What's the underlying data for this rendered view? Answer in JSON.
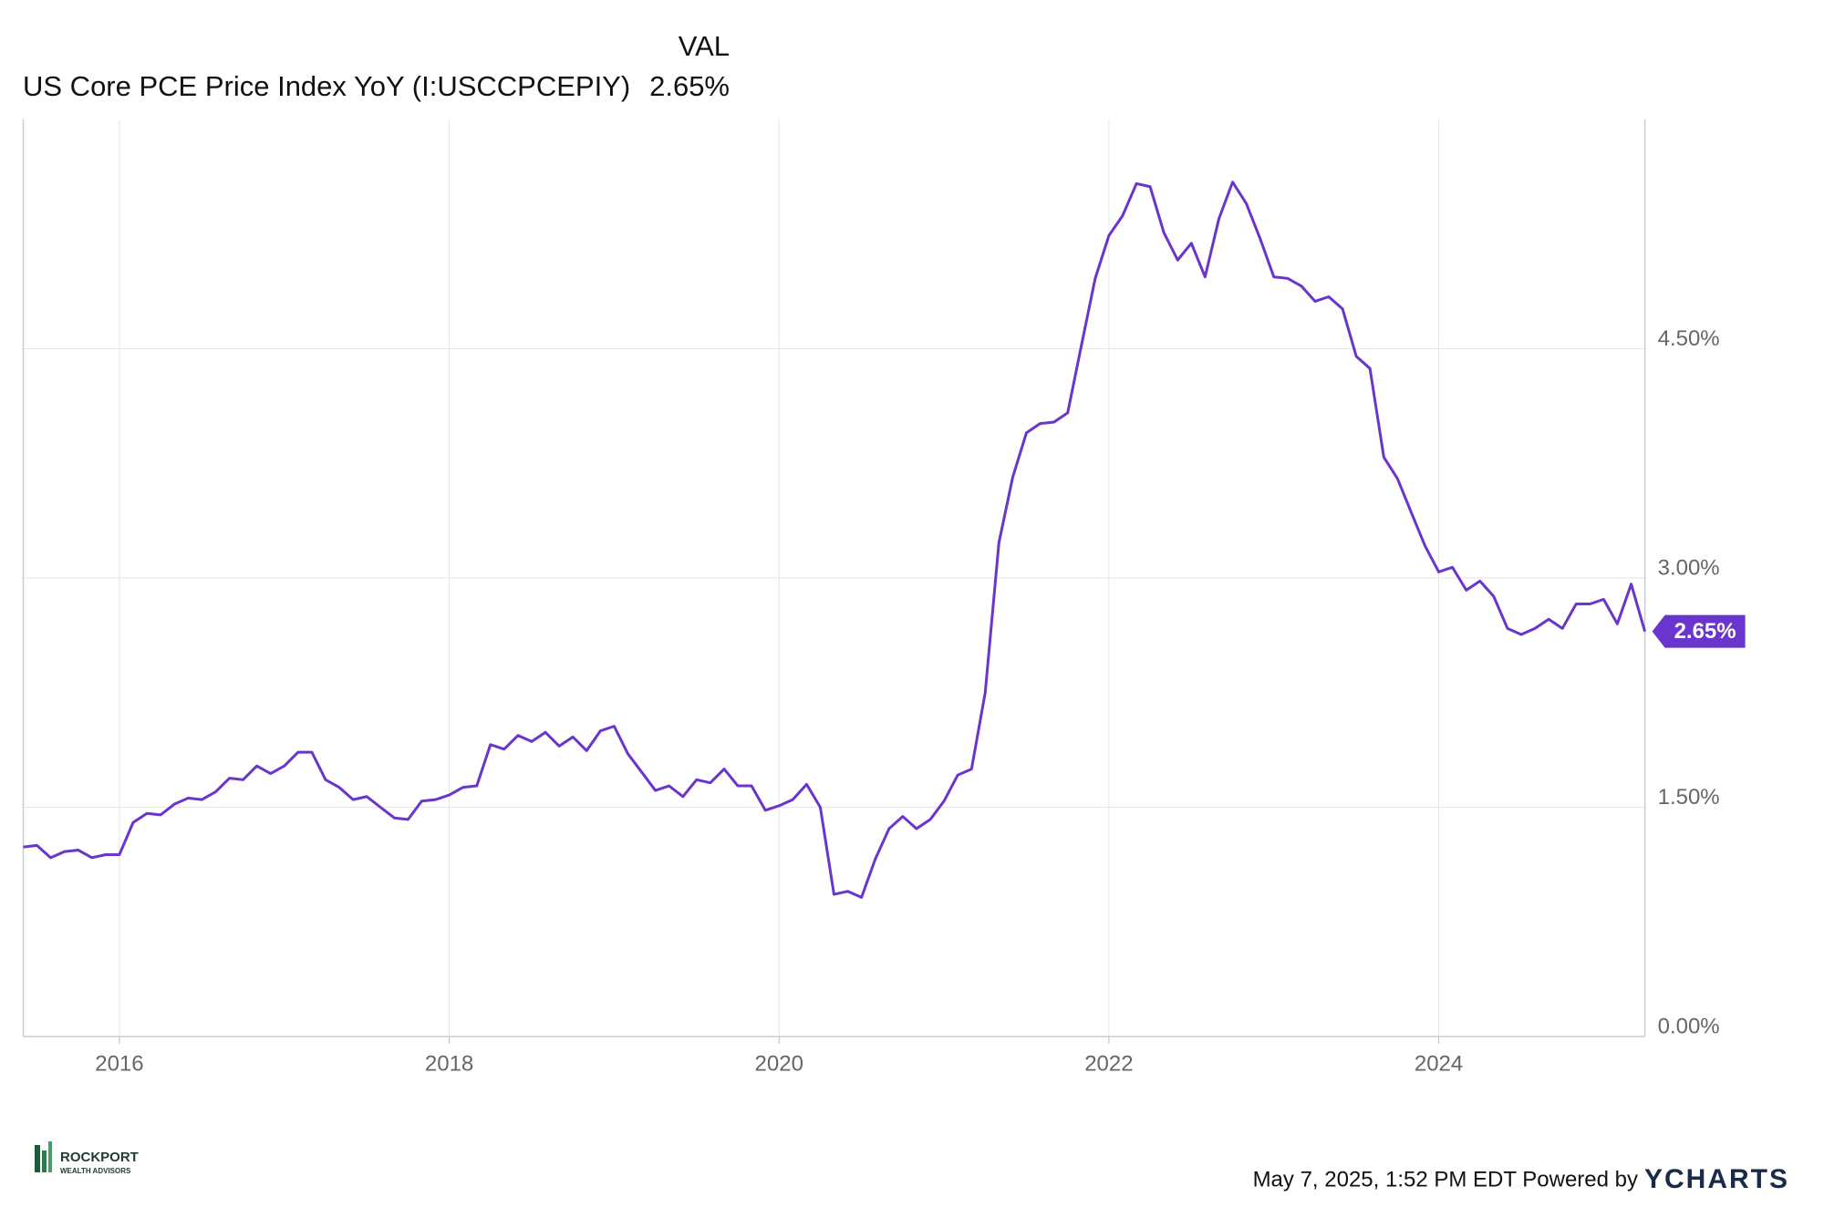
{
  "chart_data": {
    "type": "line",
    "header": "VAL",
    "series": [
      {
        "name": "US Core PCE Price Index YoY (I:USCCPCEPIY)",
        "color": "#6a35cc",
        "last_value_label": "2.65%",
        "values": [
          1.24,
          1.25,
          1.17,
          1.21,
          1.22,
          1.17,
          1.19,
          1.19,
          1.4,
          1.46,
          1.45,
          1.52,
          1.56,
          1.55,
          1.6,
          1.69,
          1.68,
          1.77,
          1.72,
          1.77,
          1.86,
          1.86,
          1.68,
          1.63,
          1.55,
          1.57,
          1.5,
          1.43,
          1.42,
          1.54,
          1.55,
          1.58,
          1.63,
          1.64,
          1.91,
          1.88,
          1.97,
          1.93,
          1.99,
          1.9,
          1.96,
          1.87,
          2.0,
          2.03,
          1.85,
          1.73,
          1.61,
          1.64,
          1.57,
          1.68,
          1.66,
          1.75,
          1.64,
          1.64,
          1.48,
          1.51,
          1.55,
          1.65,
          1.5,
          0.93,
          0.95,
          0.91,
          1.16,
          1.36,
          1.44,
          1.36,
          1.42,
          1.54,
          1.71,
          1.75,
          2.25,
          3.23,
          3.66,
          3.95,
          4.01,
          4.02,
          4.08,
          4.52,
          4.96,
          5.24,
          5.37,
          5.58,
          5.56,
          5.26,
          5.08,
          5.19,
          4.97,
          5.35,
          5.59,
          5.45,
          5.22,
          4.97,
          4.96,
          4.91,
          4.81,
          4.84,
          4.76,
          4.45,
          4.37,
          3.79,
          3.65,
          3.43,
          3.21,
          3.04,
          3.07,
          2.92,
          2.98,
          2.88,
          2.67,
          2.63,
          2.67,
          2.73,
          2.67,
          2.83,
          2.83,
          2.86,
          2.7,
          2.96,
          2.65
        ]
      }
    ],
    "x": [
      2015.417,
      2015.5,
      2015.583,
      2015.667,
      2015.75,
      2015.833,
      2015.917,
      2016,
      2016.083,
      2016.167,
      2016.25,
      2016.333,
      2016.417,
      2016.5,
      2016.583,
      2016.667,
      2016.75,
      2016.833,
      2016.917,
      2017,
      2017.083,
      2017.167,
      2017.25,
      2017.333,
      2017.417,
      2017.5,
      2017.583,
      2017.667,
      2017.75,
      2017.833,
      2017.917,
      2018,
      2018.083,
      2018.167,
      2018.25,
      2018.333,
      2018.417,
      2018.5,
      2018.583,
      2018.667,
      2018.75,
      2018.833,
      2018.917,
      2019,
      2019.083,
      2019.167,
      2019.25,
      2019.333,
      2019.417,
      2019.5,
      2019.583,
      2019.667,
      2019.75,
      2019.833,
      2019.917,
      2020,
      2020.083,
      2020.167,
      2020.25,
      2020.333,
      2020.417,
      2020.5,
      2020.583,
      2020.667,
      2020.75,
      2020.833,
      2020.917,
      2021,
      2021.083,
      2021.167,
      2021.25,
      2021.333,
      2021.417,
      2021.5,
      2021.583,
      2021.667,
      2021.75,
      2021.833,
      2021.917,
      2022,
      2022.083,
      2022.167,
      2022.25,
      2022.333,
      2022.417,
      2022.5,
      2022.583,
      2022.667,
      2022.75,
      2022.833,
      2022.917,
      2023,
      2023.083,
      2023.167,
      2023.25,
      2023.333,
      2023.417,
      2023.5,
      2023.583,
      2023.667,
      2023.75,
      2023.833,
      2023.917,
      2024,
      2024.083,
      2024.167,
      2024.25,
      2024.333,
      2024.417,
      2024.5,
      2024.583,
      2024.667,
      2024.75,
      2024.833,
      2024.917,
      2025,
      2025.083,
      2025.167,
      2025.25
    ],
    "xlim": [
      2015.417,
      2025.25
    ],
    "xticks": [
      2016,
      2018,
      2020,
      2022,
      2024
    ],
    "ylim": [
      0,
      6.0
    ],
    "yticks": [
      {
        "value": 0,
        "label": "0.00%"
      },
      {
        "value": 1.5,
        "label": "1.50%"
      },
      {
        "value": 3.0,
        "label": "3.00%"
      },
      {
        "value": 4.5,
        "label": "4.50%"
      }
    ],
    "grid": true
  },
  "footer": {
    "timestamp": "May 7, 2025, 1:52 PM EDT Powered by",
    "brand": "YCHARTS",
    "logo_name": "ROCKPORT",
    "logo_sub": "WEALTH ADVISORS"
  }
}
